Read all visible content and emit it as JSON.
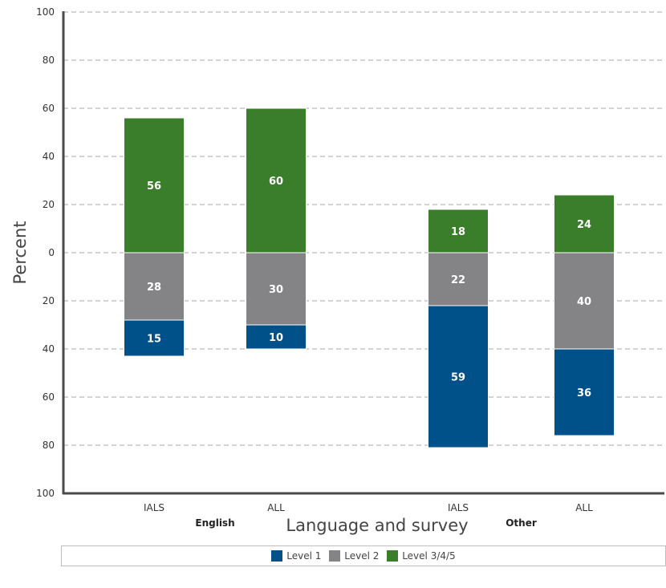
{
  "chart_data": {
    "type": "bar",
    "stacked": "diverging",
    "ylabel": "Percent",
    "xlabel": "Language and survey",
    "y_tick_labels": [
      "100",
      "80",
      "60",
      "40",
      "20",
      "0",
      "20",
      "40",
      "60",
      "80",
      "100"
    ],
    "ylim": [
      -100,
      100
    ],
    "grid": true,
    "legend_position": "bottom",
    "groups": [
      {
        "name": "English",
        "categories": [
          "IALS",
          "ALL"
        ]
      },
      {
        "name": "Other",
        "categories": [
          "IALS",
          "ALL"
        ]
      }
    ],
    "categories": [
      "IALS",
      "ALL",
      "IALS",
      "ALL"
    ],
    "series": [
      {
        "name": "Level 1",
        "color": "#00508a",
        "direction": "below",
        "values": [
          15,
          10,
          59,
          36
        ]
      },
      {
        "name": "Level 2",
        "color": "#848486",
        "direction": "below",
        "values": [
          28,
          30,
          22,
          40
        ]
      },
      {
        "name": "Level 3/4/5",
        "color": "#3a7d2b",
        "direction": "above",
        "values": [
          56,
          60,
          18,
          24
        ]
      }
    ]
  }
}
